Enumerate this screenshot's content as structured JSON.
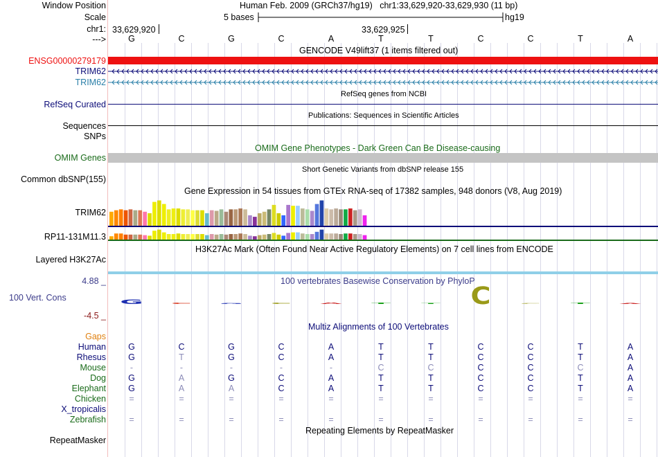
{
  "header": {
    "window_position_label": "Window Position",
    "window_position_value": "Human Feb. 2009 (GRCh37/hg19)   chr1:33,629,920-33,629,930 (11 bp)",
    "scale_label": "Scale",
    "scale_text": "5 bases",
    "scale_assembly": "hg19",
    "chrom_label": "chr1:",
    "coord_left": "33,629,920",
    "coord_mid": "33,629,925",
    "strand_label": "--->",
    "bases": [
      "G",
      "C",
      "G",
      "C",
      "A",
      "T",
      "T",
      "C",
      "C",
      "T",
      "A"
    ]
  },
  "tracks": {
    "gencode": {
      "title": "GENCODE V49lift37 (1 items filtered out)",
      "items": [
        {
          "label": "ENSG00000279179",
          "color": "#ee1111"
        },
        {
          "label": "TRIM62",
          "color": "#0c0c78"
        },
        {
          "label": "TRIM62",
          "color": "#2a7fa8"
        }
      ]
    },
    "refseq": {
      "title": "RefSeq genes from NCBI",
      "label": "RefSeq Curated",
      "color": "#0c0c78"
    },
    "publications": {
      "title": "Publications: Sequences in Scientific Articles",
      "label1": "Sequences",
      "label2": "SNPs"
    },
    "omim": {
      "title": "OMIM Gene Phenotypes - Dark Green Can Be Disease-causing",
      "label": "OMIM Genes",
      "color": "#1a6b1a"
    },
    "dbsnp": {
      "title": "Short Genetic Variants from dbSNP release 155",
      "label": "Common dbSNP(155)"
    },
    "gtex": {
      "title": "Gene Expression in 54 tissues from GTEx RNA-seq of 17382 samples, 948 donors (V8, Aug 2019)",
      "genes": [
        "TRIM62",
        "RP11-131M11.3"
      ],
      "bar_colors": [
        "#ffaa00",
        "#ff8800",
        "#ff7f00",
        "#ee5500",
        "#cc6644",
        "#aaaa88",
        "#dd7755",
        "#ff77aa",
        "#dddd00",
        "#eeee00",
        "#dddd00",
        "#eeee00",
        "#eeee22",
        "#eeee11",
        "#dddd00",
        "#eeee33",
        "#eeee55",
        "#ffff44",
        "#dddd33",
        "#dddd00",
        "#66bbcc",
        "#dd99aa",
        "#bbaa88",
        "#99bb99",
        "#aa8877",
        "#996644",
        "#bb9977",
        "#aa7755",
        "#ccbb99",
        "#aa88cc",
        "#883399",
        "#bbaa66",
        "#ccbb77",
        "#778866",
        "#dddd22",
        "#cccc00",
        "#3366ff",
        "#aa77cc",
        "#eeee00",
        "#99ccff",
        "#bbbb99",
        "#aaddaa",
        "#aa88cc",
        "#5577dd",
        "#2244aa",
        "#ddccaa",
        "#ccbbaa",
        "#bbaa99",
        "#998877",
        "#11aa44",
        "#cc2222",
        "#aa9988",
        "#ccbbcc",
        "#ee22ee"
      ],
      "values_trim62": [
        0.47,
        0.52,
        0.55,
        0.52,
        0.55,
        0.52,
        0.52,
        0.47,
        0.42,
        0.8,
        0.85,
        0.73,
        0.55,
        0.58,
        0.58,
        0.55,
        0.55,
        0.52,
        0.52,
        0.52,
        0.42,
        0.52,
        0.5,
        0.55,
        0.47,
        0.55,
        0.55,
        0.58,
        0.55,
        0.35,
        0.3,
        0.42,
        0.47,
        0.55,
        0.7,
        0.42,
        0.35,
        0.7,
        0.67,
        0.67,
        0.58,
        0.55,
        0.5,
        0.73,
        0.85,
        0.58,
        0.55,
        0.58,
        0.55,
        0.55,
        0.58,
        0.52,
        0.55,
        0.35
      ],
      "values_rp11": [
        0.3,
        0.55,
        0.55,
        0.45,
        0.45,
        0.45,
        0.45,
        0.4,
        0.35,
        0.8,
        0.9,
        0.65,
        0.5,
        0.5,
        0.55,
        0.5,
        0.5,
        0.5,
        0.5,
        0.5,
        0.4,
        0.5,
        0.45,
        0.5,
        0.45,
        0.5,
        0.5,
        0.55,
        0.5,
        0.35,
        0.3,
        0.4,
        0.45,
        0.5,
        0.6,
        0.45,
        0.35,
        0.6,
        0.65,
        0.65,
        0.55,
        0.5,
        0.5,
        0.7,
        0.9,
        0.55,
        0.55,
        0.55,
        0.5,
        0.55,
        0.55,
        0.5,
        0.5,
        0.4
      ],
      "line_trim62": "#0c0c78",
      "line_rp11": "#1a6b1a"
    },
    "h3k27ac": {
      "title": "H3K27Ac Mark (Often Found Near Active Regulatory Elements) on 7 cell lines from ENCODE",
      "label": "Layered H3K27Ac",
      "color": "#8fcfe8"
    },
    "phylop": {
      "title": "100 vertebrates Basewise Conservation by PhyloP",
      "label": "100 Vert. Cons",
      "max_label": "4.88 _",
      "min_label": "-4.5 _",
      "max_color": "#3b3b8a",
      "min_color": "#8b1a1a",
      "glyphs": [
        {
          "base": "G",
          "color": "#1c2eb0",
          "height": 1.2
        },
        {
          "base": "C",
          "color": "#d83a22",
          "height": 0.4
        },
        {
          "base": "G",
          "color": "#1c2eb0",
          "height": 0.2
        },
        {
          "base": "C",
          "color": "#9a9a18",
          "height": 0.4
        },
        {
          "base": "A",
          "color": "#c81818",
          "height": 0.4
        },
        {
          "base": "T",
          "color": "#18a018",
          "height": 0.4
        },
        {
          "base": "T",
          "color": "#18a018",
          "height": 0.2
        },
        {
          "base": "C",
          "color": "#9a9a18",
          "height": 4.88
        },
        {
          "base": "C",
          "color": "#b8b860",
          "height": 0.2
        },
        {
          "base": "T",
          "color": "#18a018",
          "height": 0.3
        },
        {
          "base": "A",
          "color": "#c81818",
          "height": 0.1
        }
      ]
    },
    "multiz": {
      "title": "Multiz Alignments of 100 Vertebrates",
      "gaps_label": "Gaps",
      "rows": [
        {
          "species": "Human",
          "color": "#0c0c78",
          "bases": [
            "G",
            "C",
            "G",
            "C",
            "A",
            "T",
            "T",
            "C",
            "C",
            "T",
            "A"
          ],
          "dim": [
            false,
            false,
            false,
            false,
            false,
            false,
            false,
            false,
            false,
            false,
            false
          ]
        },
        {
          "species": "Rhesus",
          "color": "#0c0c78",
          "bases": [
            "G",
            "T",
            "G",
            "C",
            "A",
            "T",
            "T",
            "C",
            "C",
            "T",
            "A"
          ],
          "dim": [
            false,
            true,
            false,
            false,
            false,
            false,
            false,
            false,
            false,
            false,
            false
          ]
        },
        {
          "species": "Mouse",
          "color": "#1a6b1a",
          "bases": [
            "-",
            "-",
            "-",
            "-",
            "-",
            "C",
            "C",
            "C",
            "C",
            "C",
            "A"
          ],
          "dim": [
            true,
            true,
            true,
            true,
            true,
            true,
            true,
            false,
            false,
            true,
            false
          ]
        },
        {
          "species": "Dog",
          "color": "#1a6b1a",
          "bases": [
            "G",
            "A",
            "G",
            "C",
            "A",
            "T",
            "T",
            "C",
            "C",
            "T",
            "A"
          ],
          "dim": [
            false,
            true,
            false,
            false,
            false,
            false,
            false,
            false,
            false,
            false,
            false
          ]
        },
        {
          "species": "Elephant",
          "color": "#1a6b1a",
          "bases": [
            "G",
            "A",
            "A",
            "C",
            "A",
            "T",
            "T",
            "C",
            "C",
            "T",
            "A"
          ],
          "dim": [
            false,
            true,
            true,
            false,
            false,
            false,
            false,
            false,
            false,
            false,
            false
          ]
        },
        {
          "species": "Chicken",
          "color": "#1a6b1a",
          "bases": [
            "=",
            "=",
            "=",
            "=",
            "=",
            "=",
            "=",
            "=",
            "=",
            "=",
            "="
          ],
          "dim": [
            true,
            true,
            true,
            true,
            true,
            true,
            true,
            true,
            true,
            true,
            true
          ]
        },
        {
          "species": "X_tropicalis",
          "color": "#0c0c78",
          "bases": [
            "",
            "",
            "",
            "",
            "",
            "",
            "",
            "",
            "",
            "",
            ""
          ],
          "dim": [
            true,
            true,
            true,
            true,
            true,
            true,
            true,
            true,
            true,
            true,
            true
          ]
        },
        {
          "species": "Zebrafish",
          "color": "#1a6b1a",
          "bases": [
            "=",
            "=",
            "=",
            "=",
            "=",
            "=",
            "=",
            "=",
            "=",
            "=",
            "="
          ],
          "dim": [
            true,
            true,
            true,
            true,
            true,
            true,
            true,
            true,
            true,
            true,
            true
          ]
        }
      ]
    },
    "repeatmasker": {
      "title": "Repeating Elements by RepeatMasker",
      "label": "RepeatMasker"
    }
  }
}
